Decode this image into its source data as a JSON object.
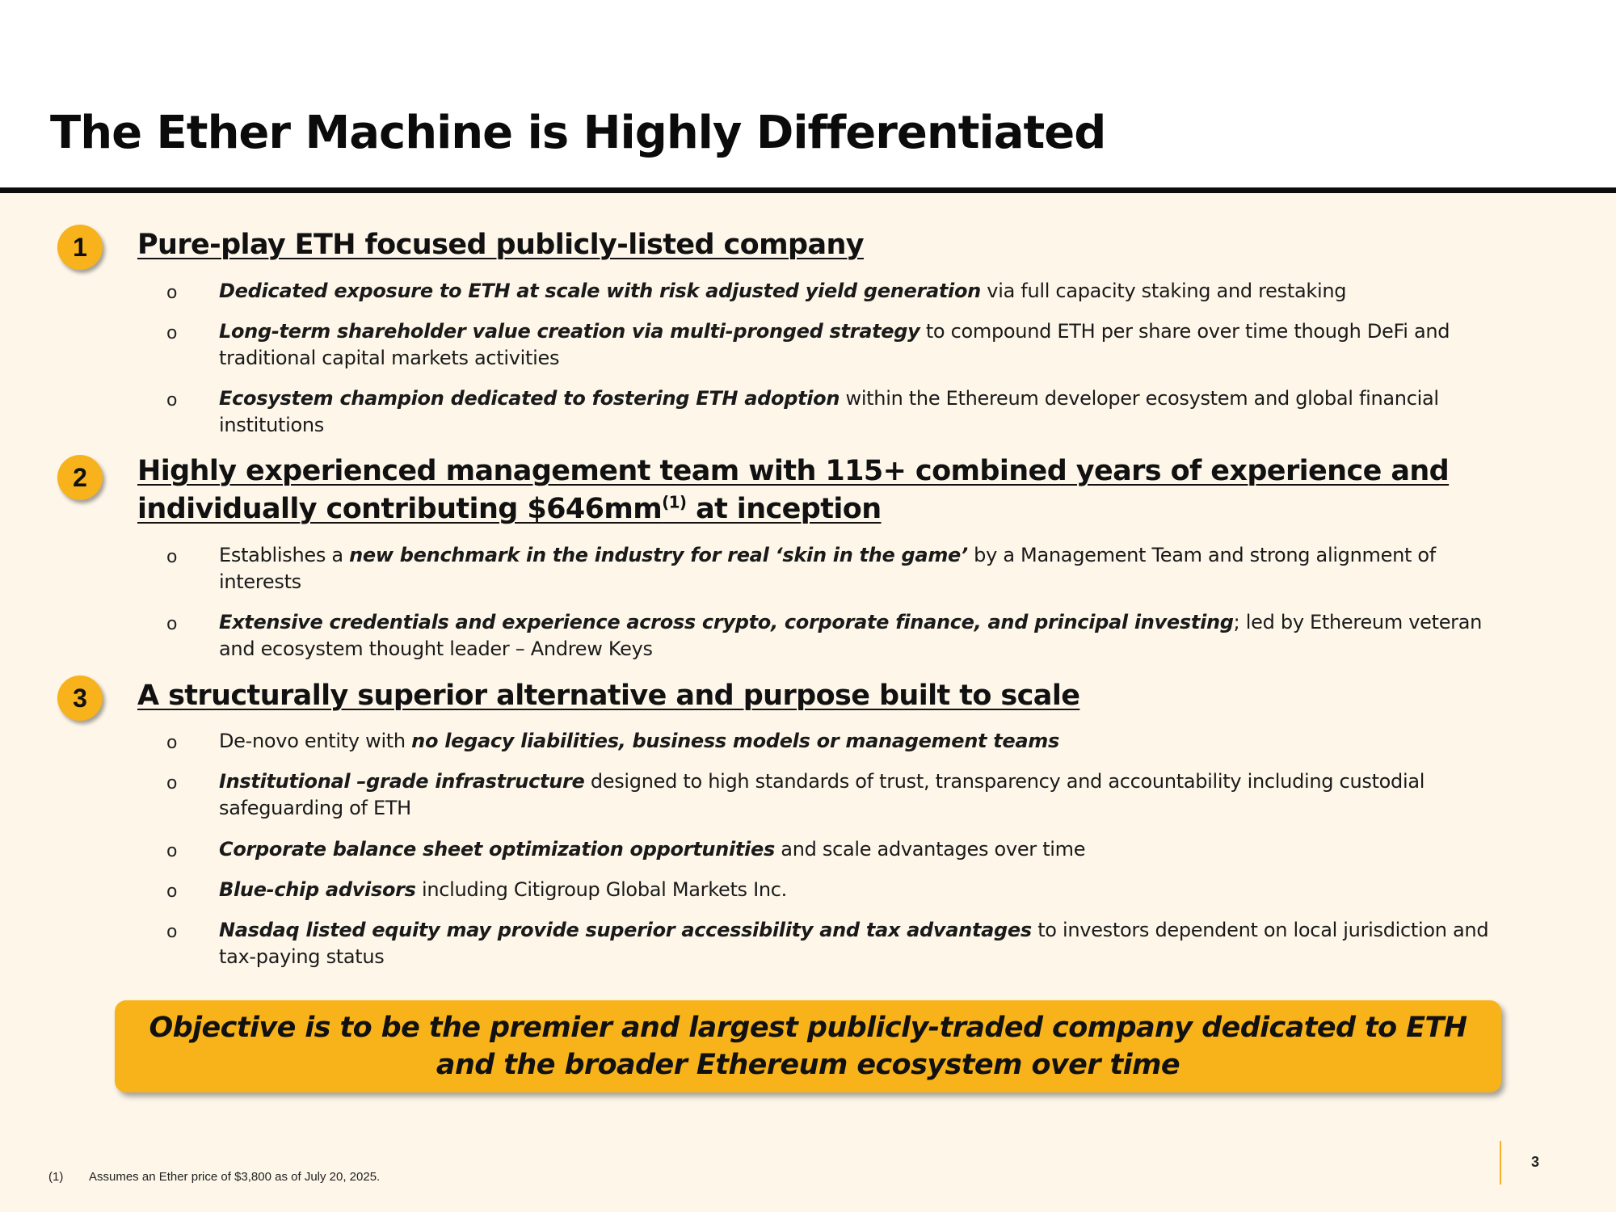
{
  "title": "The Ether Machine is Highly Differentiated",
  "sections": [
    {
      "number": "1",
      "heading": "Pure-play ETH focused publicly-listed company",
      "bullets": [
        {
          "marker": "o",
          "bold": "Dedicated exposure to ETH at scale with risk adjusted yield generation",
          "rest": " via full capacity staking and restaking"
        },
        {
          "marker": "o",
          "bold": "Long-term shareholder value creation via multi-pronged strategy",
          "rest": " to compound ETH per share over time though DeFi and traditional capital markets activities"
        },
        {
          "marker": "o",
          "bold": "Ecosystem champion dedicated to fostering ETH adoption",
          "rest": " within the Ethereum developer ecosystem and global financial institutions"
        }
      ]
    },
    {
      "number": "2",
      "heading_part1": "Highly experienced management team with 115+ combined years of experience and individually contributing $646mm",
      "heading_sup": "(1)",
      "heading_part2": " at inception",
      "bullets": [
        {
          "marker": "o",
          "pre": "Establishes a ",
          "bold": "new benchmark in the industry for real ‘skin in the game’",
          "rest": " by a Management Team and strong alignment of interests"
        },
        {
          "marker": "o",
          "bold": "Extensive credentials and experience across crypto, corporate finance, and principal investing",
          "rest": "; led by Ethereum veteran and ecosystem thought leader – Andrew Keys"
        }
      ]
    },
    {
      "number": "3",
      "heading": "A structurally superior alternative and purpose built to scale",
      "bullets": [
        {
          "marker": "o",
          "pre": "De-novo entity with ",
          "bold": "no legacy liabilities, business models or management teams"
        },
        {
          "marker": "o",
          "bold": "Institutional –grade infrastructure",
          "rest": " designed to high standards of trust, transparency and accountability including custodial safeguarding of ETH"
        },
        {
          "marker": "o",
          "bold": "Corporate balance sheet optimization opportunities",
          "rest": " and scale advantages over time"
        },
        {
          "marker": "o",
          "bold": "Blue-chip advisors",
          "rest": " including Citigroup Global Markets Inc."
        },
        {
          "marker": "o",
          "bold": "Nasdaq listed equity may provide superior accessibility and tax advantages",
          "rest": " to investors dependent on local jurisdiction and tax-paying status"
        }
      ]
    }
  ],
  "objective": {
    "line1": "Objective is to be the premier and largest publicly-traded company dedicated to ETH",
    "line2": "and the broader Ethereum ecosystem over time"
  },
  "footnote": {
    "marker": "(1)",
    "text": "Assumes an Ether price of $3,800 as of July 20, 2025."
  },
  "page_number": "3",
  "colors": {
    "accent": "#f8b31a",
    "background": "#fdf6e9",
    "text": "#111111"
  }
}
